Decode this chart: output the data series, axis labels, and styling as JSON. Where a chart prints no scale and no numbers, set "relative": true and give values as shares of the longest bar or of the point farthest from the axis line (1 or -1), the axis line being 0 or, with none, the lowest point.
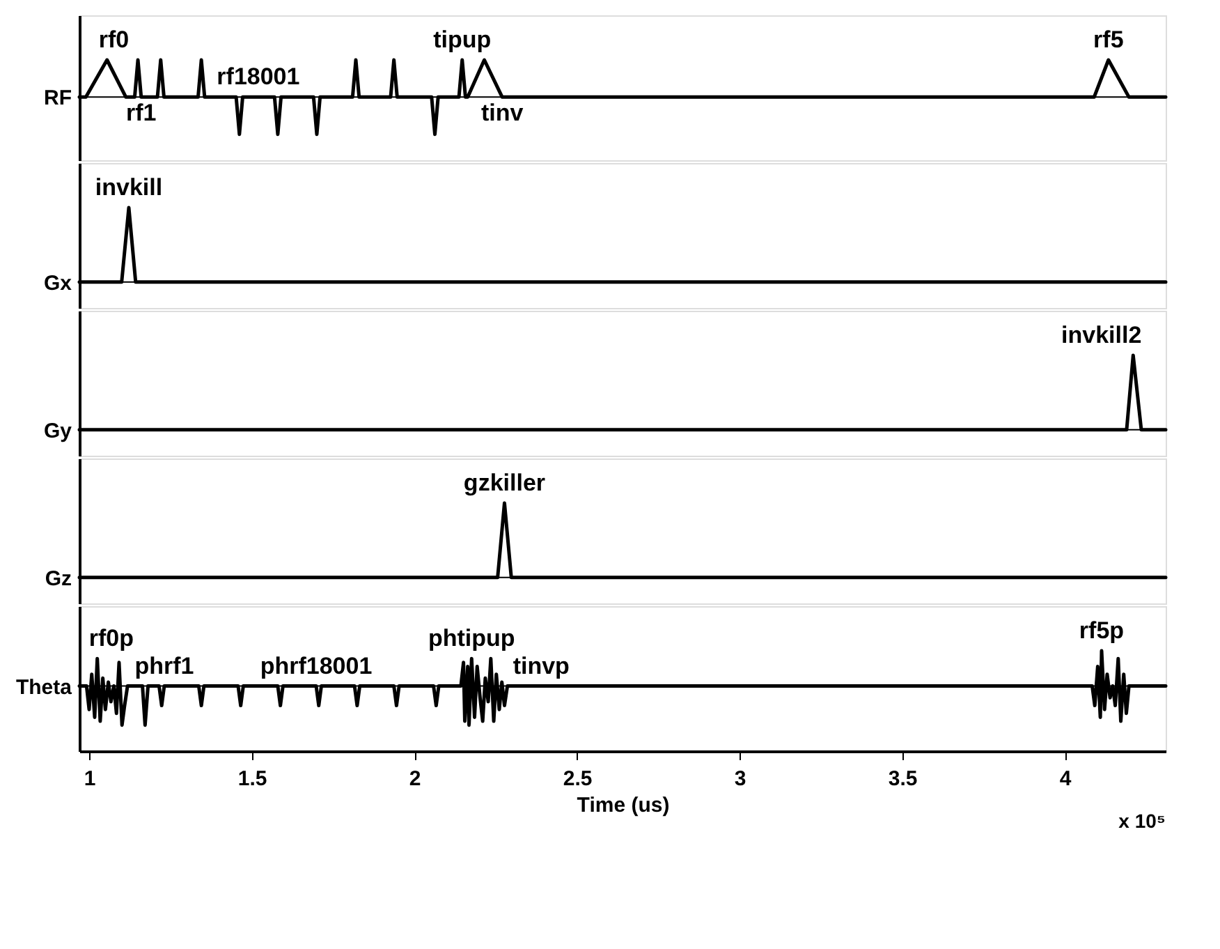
{
  "chart_data": [
    {
      "type": "line",
      "relative": true,
      "ylabel": "RF",
      "color": "#000000",
      "xlim": [
        0.97,
        4.31
      ],
      "xticks": [
        1,
        1.5,
        2,
        2.5,
        3,
        3.5,
        4
      ],
      "tick_labels": false,
      "grid": false,
      "x": [
        0.97,
        0.99,
        1.055,
        1.113,
        1.14,
        1.15,
        1.16,
        1.21,
        1.22,
        1.23,
        1.335,
        1.345,
        1.355,
        1.452,
        1.462,
        1.472,
        1.52,
        1.57,
        1.58,
        1.59,
        1.69,
        1.7,
        1.71,
        1.81,
        1.82,
        1.83,
        1.927,
        1.937,
        1.947,
        2.053,
        2.063,
        2.073,
        2.137,
        2.147,
        2.157,
        2.164,
        2.215,
        2.27,
        4.09,
        4.134,
        4.197,
        4.31
      ],
      "values": [
        0,
        0,
        1,
        0,
        0,
        1,
        0,
        0,
        1,
        0,
        0,
        1,
        0,
        0,
        -1,
        0,
        0,
        0,
        -1,
        0,
        0,
        -1,
        0,
        0,
        1,
        0,
        0,
        1,
        0,
        0,
        -1,
        0,
        0,
        1,
        0,
        0,
        1,
        0,
        0,
        1,
        0,
        0
      ],
      "annotations": [
        {
          "text": "rf0",
          "x": 1.055,
          "y": 1
        },
        {
          "text": "rf1",
          "x": 1.16,
          "y": 0
        },
        {
          "text": "rf18001",
          "x": 1.52,
          "y": 0
        },
        {
          "text": "tipup",
          "x": 2.147,
          "y": 1
        },
        {
          "text": "tinv",
          "x": 2.27,
          "y": 0
        },
        {
          "text": "rf5",
          "x": 4.134,
          "y": 1
        }
      ]
    },
    {
      "type": "line",
      "relative": true,
      "ylabel": "Gx",
      "color": "#000000",
      "xlim": [
        0.97,
        4.31
      ],
      "xticks": [
        1,
        1.5,
        2,
        2.5,
        3,
        3.5,
        4
      ],
      "tick_labels": false,
      "grid": false,
      "x": [
        0.97,
        1.1,
        1.122,
        1.143,
        4.31
      ],
      "values": [
        0,
        0,
        1,
        0,
        0
      ],
      "annotations": [
        {
          "text": "invkill",
          "x": 1.122,
          "y": 1
        }
      ]
    },
    {
      "type": "line",
      "relative": true,
      "ylabel": "Gy",
      "color": "#000000",
      "xlim": [
        0.97,
        4.31
      ],
      "xticks": [
        1,
        1.5,
        2,
        2.5,
        3,
        3.5,
        4
      ],
      "tick_labels": false,
      "grid": false,
      "x": [
        0.97,
        4.19,
        4.21,
        4.235,
        4.31
      ],
      "values": [
        0,
        0,
        1,
        0,
        0
      ],
      "annotations": [
        {
          "text": "invkill2",
          "x": 4.21,
          "y": 1
        }
      ]
    },
    {
      "type": "line",
      "relative": true,
      "ylabel": "Gz",
      "color": "#000000",
      "xlim": [
        0.97,
        4.31
      ],
      "xticks": [
        1,
        1.5,
        2,
        2.5,
        3,
        3.5,
        4
      ],
      "tick_labels": false,
      "grid": false,
      "x": [
        0.97,
        2.256,
        2.277,
        2.298,
        4.31
      ],
      "values": [
        0,
        0,
        1,
        0,
        0
      ],
      "annotations": [
        {
          "text": "gzkiller",
          "x": 2.277,
          "y": 1
        }
      ]
    },
    {
      "type": "line",
      "relative": true,
      "ylabel": "Theta",
      "xlabel": "Time (us)",
      "color": "#000000",
      "xlim": [
        0.97,
        4.31
      ],
      "xticks": [
        1,
        1.5,
        2,
        2.5,
        3,
        3.5,
        4
      ],
      "tick_labels": "x",
      "grid": false,
      "x": [
        0.97,
        0.992,
        1.0,
        1.008,
        1.017,
        1.025,
        1.034,
        1.042,
        1.05,
        1.059,
        1.067,
        1.076,
        1.084,
        1.092,
        1.101,
        1.109,
        1.118,
        1.164,
        1.172,
        1.181,
        1.215,
        1.223,
        1.231,
        1.337,
        1.345,
        1.353,
        1.458,
        1.466,
        1.474,
        1.58,
        1.588,
        1.596,
        1.698,
        1.706,
        1.714,
        1.816,
        1.824,
        1.832,
        1.937,
        1.945,
        1.953,
        2.059,
        2.067,
        2.075,
        2.143,
        2.151,
        2.155,
        2.164,
        2.168,
        2.176,
        2.185,
        2.193,
        2.202,
        2.21,
        2.218,
        2.227,
        2.235,
        2.244,
        2.252,
        2.261,
        2.269,
        2.277,
        2.286,
        2.39,
        4.084,
        4.092,
        4.101,
        4.109,
        4.113,
        4.122,
        4.13,
        4.139,
        4.147,
        4.155,
        4.164,
        4.172,
        4.181,
        4.189,
        4.197,
        4.31
      ],
      "values": [
        0,
        0,
        -0.6,
        0.3,
        -0.8,
        0.7,
        -0.9,
        0.2,
        -0.6,
        0.1,
        -0.4,
        0,
        -0.7,
        0.6,
        -1,
        -0.5,
        0,
        0,
        -1,
        0,
        0,
        -0.5,
        0,
        0,
        -0.5,
        0,
        0,
        -0.5,
        0,
        0,
        -0.5,
        0,
        0,
        -0.5,
        0,
        0,
        -0.5,
        0,
        0,
        -0.5,
        0,
        0,
        -0.5,
        0,
        0,
        0.6,
        -0.9,
        0.5,
        -1,
        0.7,
        -0.8,
        0.5,
        -0.3,
        -0.9,
        0.2,
        -0.4,
        0.7,
        -0.9,
        0.3,
        -0.6,
        0.1,
        -0.5,
        0,
        0,
        0,
        -0.5,
        0.5,
        -0.8,
        0.9,
        -0.6,
        0.3,
        -0.3,
        0,
        -0.5,
        0.7,
        -0.9,
        0.3,
        -0.7,
        0,
        0
      ],
      "annotations": [
        {
          "text": "rf0p",
          "x": 1.025,
          "y": 0.7
        },
        {
          "text": "phrf1",
          "x": 1.231,
          "y": 0
        },
        {
          "text": "phrf18001",
          "x": 1.698,
          "y": 0
        },
        {
          "text": "phtipup",
          "x": 2.176,
          "y": 0.7
        },
        {
          "text": "tinvp",
          "x": 2.39,
          "y": 0
        },
        {
          "text": "rf5p",
          "x": 4.113,
          "y": 0.9
        },
        "x 10⁵"
      ]
    }
  ]
}
